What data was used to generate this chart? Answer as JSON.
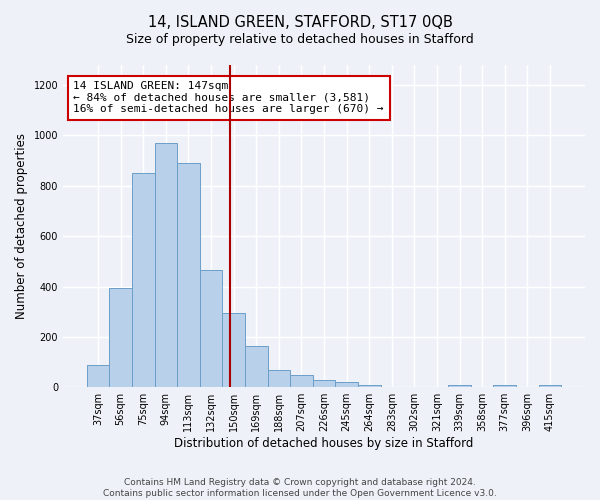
{
  "title": "14, ISLAND GREEN, STAFFORD, ST17 0QB",
  "subtitle": "Size of property relative to detached houses in Stafford",
  "xlabel": "Distribution of detached houses by size in Stafford",
  "ylabel": "Number of detached properties",
  "categories": [
    "37sqm",
    "56sqm",
    "75sqm",
    "94sqm",
    "113sqm",
    "132sqm",
    "150sqm",
    "169sqm",
    "188sqm",
    "207sqm",
    "226sqm",
    "245sqm",
    "264sqm",
    "283sqm",
    "302sqm",
    "321sqm",
    "339sqm",
    "358sqm",
    "377sqm",
    "396sqm",
    "415sqm"
  ],
  "values": [
    90,
    395,
    850,
    970,
    890,
    465,
    295,
    163,
    68,
    50,
    30,
    20,
    8,
    0,
    0,
    0,
    10,
    0,
    10,
    0,
    10
  ],
  "bar_color": "#b8d0ea",
  "bar_edge_color": "#6a9fc8",
  "vline_color": "#aa0000",
  "annotation_text": "14 ISLAND GREEN: 147sqm\n← 84% of detached houses are smaller (3,581)\n16% of semi-detached houses are larger (670) →",
  "annotation_box_color": "#ffffff",
  "annotation_box_edge_color": "#cc0000",
  "ylim": [
    0,
    1280
  ],
  "yticks": [
    0,
    200,
    400,
    600,
    800,
    1000,
    1200
  ],
  "footer_text": "Contains HM Land Registry data © Crown copyright and database right 2024.\nContains public sector information licensed under the Open Government Licence v3.0.",
  "bg_color": "#eef2f8",
  "plot_bg_color": "#eef2f8",
  "grid_color": "#ffffff",
  "title_fontsize": 10.5,
  "subtitle_fontsize": 9,
  "axis_label_fontsize": 8.5,
  "tick_fontsize": 7,
  "annotation_fontsize": 8,
  "footer_fontsize": 6.5
}
